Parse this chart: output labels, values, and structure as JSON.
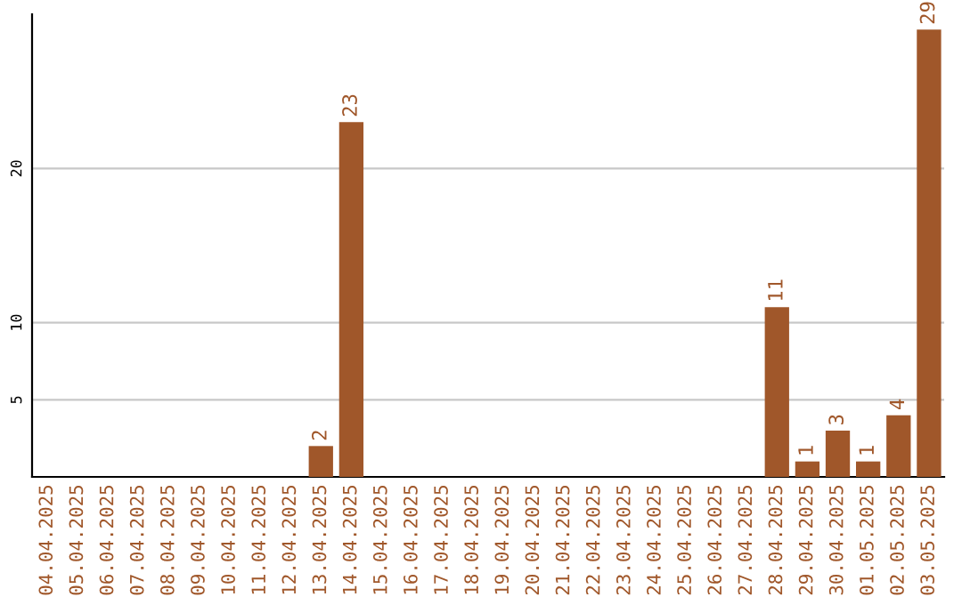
{
  "chart_data": {
    "type": "bar",
    "categories": [
      "04.04.2025",
      "05.04.2025",
      "06.04.2025",
      "07.04.2025",
      "08.04.2025",
      "09.04.2025",
      "10.04.2025",
      "11.04.2025",
      "12.04.2025",
      "13.04.2025",
      "14.04.2025",
      "15.04.2025",
      "16.04.2025",
      "17.04.2025",
      "18.04.2025",
      "19.04.2025",
      "20.04.2025",
      "21.04.2025",
      "22.04.2025",
      "23.04.2025",
      "24.04.2025",
      "25.04.2025",
      "26.04.2025",
      "27.04.2025",
      "28.04.2025",
      "29.04.2025",
      "30.04.2025",
      "01.05.2025",
      "02.05.2025",
      "03.05.2025"
    ],
    "values": [
      0,
      0,
      0,
      0,
      0,
      0,
      0,
      0,
      0,
      2,
      23,
      0,
      0,
      0,
      0,
      0,
      0,
      0,
      0,
      0,
      0,
      0,
      0,
      0,
      11,
      1,
      3,
      1,
      4,
      29
    ],
    "value_labels": [
      null,
      null,
      null,
      null,
      null,
      null,
      null,
      null,
      null,
      "2",
      "23",
      null,
      null,
      null,
      null,
      null,
      null,
      null,
      null,
      null,
      null,
      null,
      null,
      null,
      "11",
      "1",
      "3",
      "1",
      "4",
      "29"
    ],
    "color": "#a0572a",
    "ylim": [
      0,
      30
    ],
    "yticks": [
      5,
      10,
      20
    ],
    "grid": "y",
    "legend": false
  }
}
